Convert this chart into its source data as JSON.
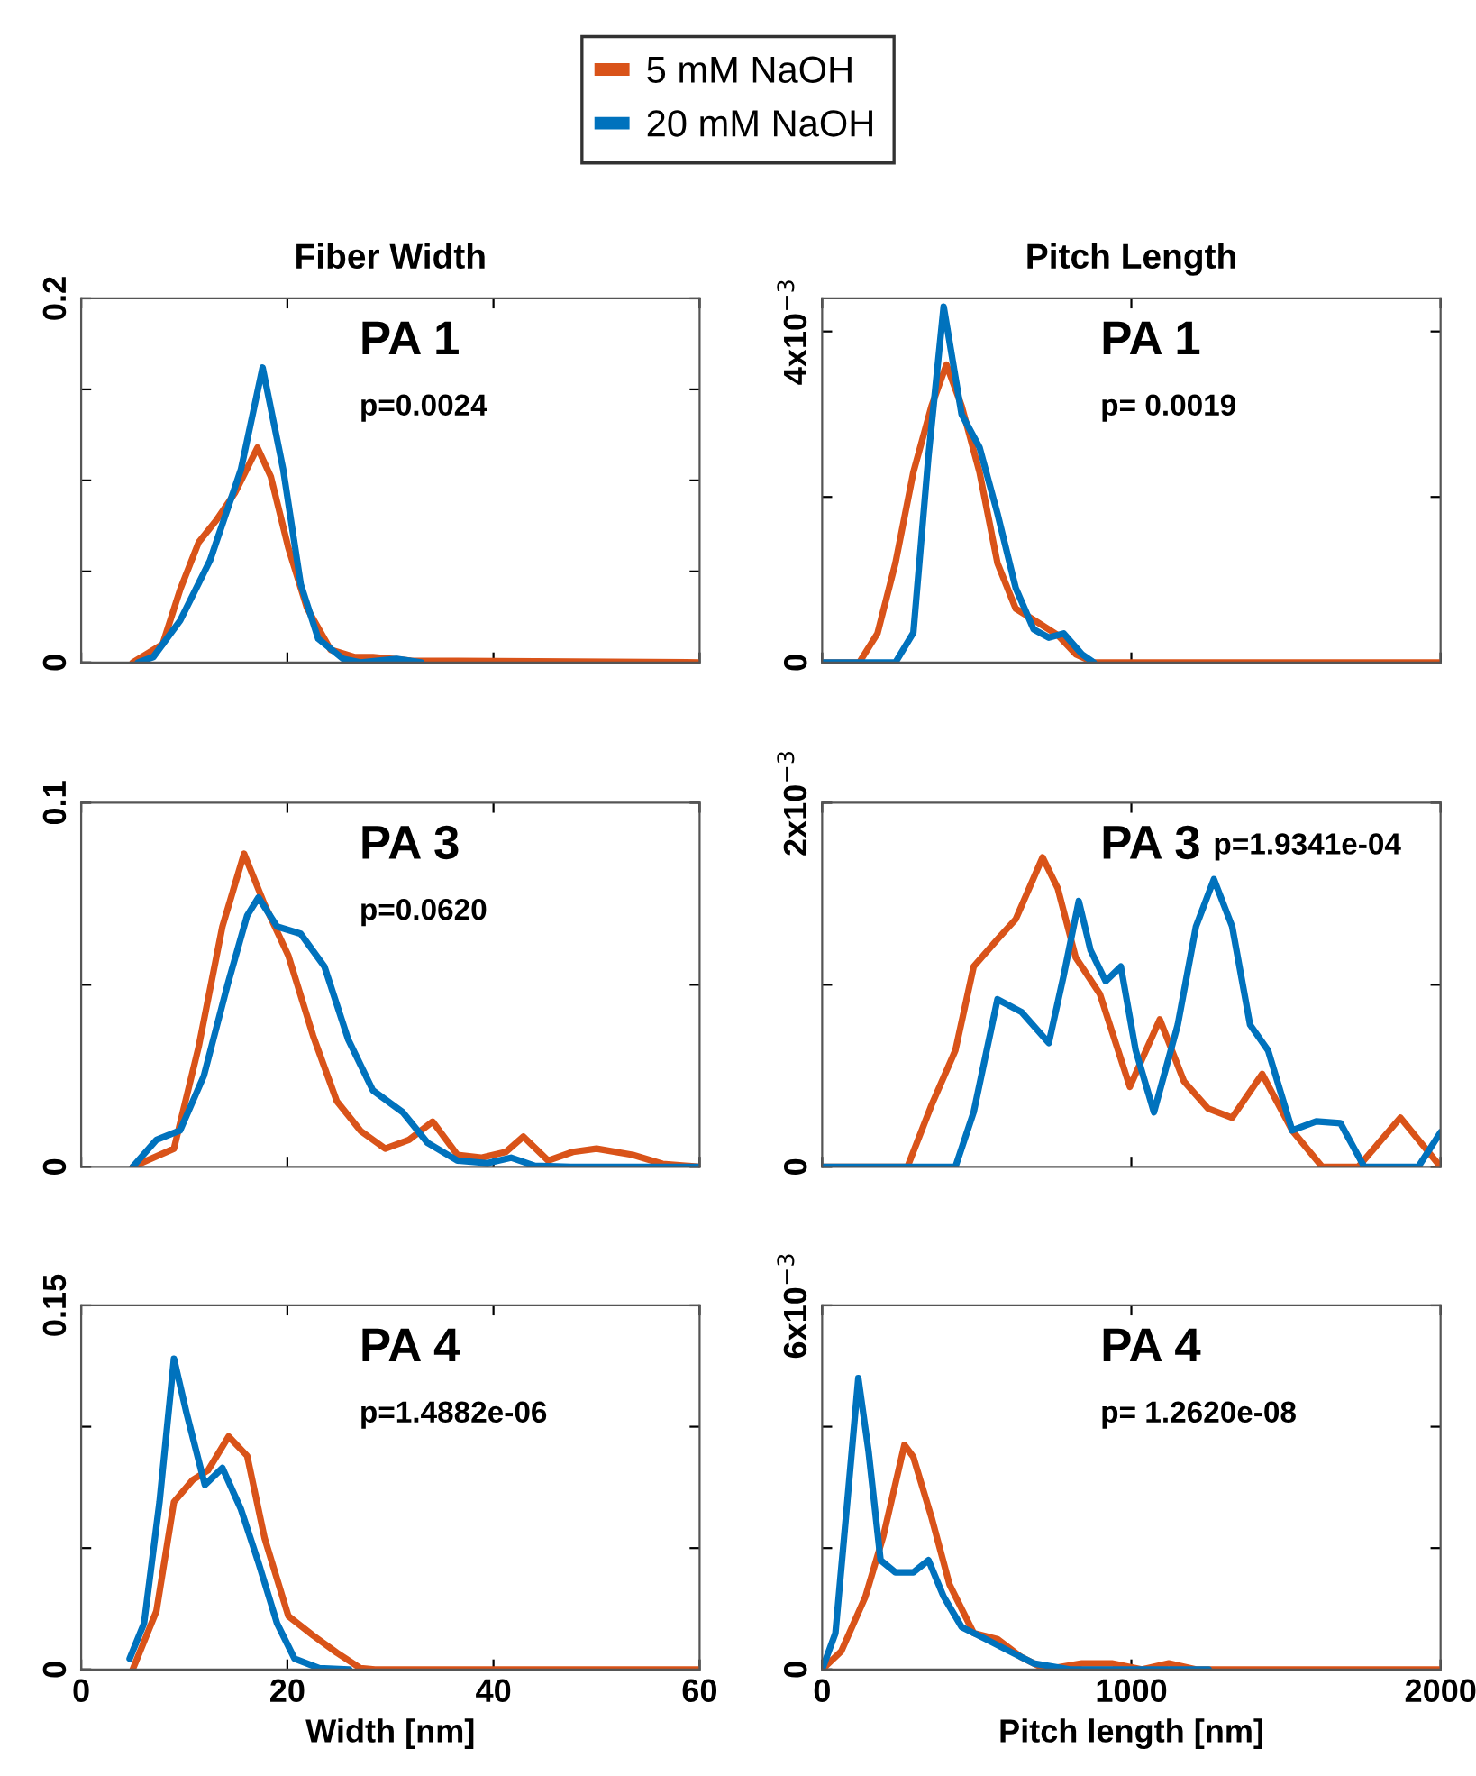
{
  "chart_data": [
    {
      "type": "line",
      "title": "Fiber Width",
      "legend": "top",
      "tick_labels": "y",
      "xlim": [
        0,
        60
      ],
      "xticks": [
        0,
        20,
        40,
        60
      ],
      "ylim": [
        0,
        0.2
      ],
      "yticks": [
        0,
        {
          "value": 0.05,
          "label": null
        },
        {
          "value": 0.1,
          "label": null
        },
        {
          "value": 0.15,
          "label": null
        },
        0.2
      ],
      "annotations": [
        "PA 1",
        "p=0.0024"
      ],
      "series": [
        {
          "name": "5 mM NaOH",
          "color": "#d95319",
          "x": [
            5,
            7.9,
            9.6,
            11.4,
            13.1,
            14.9,
            17.1,
            18.4,
            20.1,
            21.9,
            24.2,
            26.5,
            28.3,
            32,
            60
          ],
          "values": [
            0,
            0.01,
            0.04,
            0.066,
            0.078,
            0.093,
            0.118,
            0.102,
            0.063,
            0.03,
            0.007,
            0.003,
            0.003,
            0.001,
            0
          ]
        },
        {
          "name": "20 mM NaOH",
          "color": "#0072bd",
          "x": [
            5.5,
            7,
            9.6,
            12.5,
            15.5,
            17.6,
            19.6,
            21.3,
            23,
            25.4,
            27.1,
            30.6,
            33
          ],
          "values": [
            0,
            0.003,
            0.023,
            0.056,
            0.106,
            0.162,
            0.106,
            0.043,
            0.013,
            0.002,
            0,
            0.002,
            0
          ]
        }
      ]
    },
    {
      "type": "line",
      "title": "Pitch Length",
      "tick_labels": "y",
      "xlim": [
        0,
        2000
      ],
      "xticks": [
        0,
        1000,
        2000
      ],
      "ylim": [
        0,
        0.0044
      ],
      "yticks": [
        0,
        {
          "value": 0.002,
          "label": null
        },
        {
          "value": 0.004,
          "label": "4x10$^{−3}$"
        }
      ],
      "annotations": [
        "PA 1",
        "p= 0.0019"
      ],
      "series": [
        {
          "color": "#d95319",
          "x": [
            0,
            120,
            179,
            237,
            295,
            354,
            402,
            451,
            509,
            567,
            626,
            703,
            762,
            820,
            878,
            2000
          ],
          "values": [
            0,
            0,
            0.00035,
            0.0012,
            0.0023,
            0.0031,
            0.0036,
            0.0031,
            0.0023,
            0.0012,
            0.00065,
            0.00047,
            0.00033,
            0.0001,
            0,
            0
          ]
        },
        {
          "color": "#0072bd",
          "x": [
            0,
            237,
            295,
            344,
            393,
            451,
            509,
            567,
            626,
            684,
            733,
            781,
            840,
            878
          ],
          "values": [
            0,
            0,
            0.00036,
            0.0025,
            0.0043,
            0.003,
            0.0026,
            0.0018,
            0.0009,
            0.0004,
            0.0003,
            0.00035,
            0.0001,
            0
          ]
        }
      ]
    },
    {
      "type": "line",
      "tick_labels": "y",
      "xlim": [
        0,
        60
      ],
      "xticks": [
        0,
        20,
        40,
        60
      ],
      "ylim": [
        0,
        0.1
      ],
      "yticks": [
        0,
        {
          "value": 0.05,
          "label": null
        },
        0.1
      ],
      "annotations": [
        "PA 3",
        "p=0.0620"
      ],
      "series": [
        {
          "color": "#d95319",
          "x": [
            5,
            9,
            11.4,
            13.7,
            15.8,
            17.8,
            20.1,
            22.5,
            24.8,
            27.1,
            29.5,
            31.8,
            34.1,
            36.5,
            38.8,
            41.2,
            42.9,
            45.3,
            47.7,
            50,
            53.5,
            56.4,
            60
          ],
          "values": [
            0,
            0.005,
            0.033,
            0.066,
            0.086,
            0.072,
            0.058,
            0.036,
            0.018,
            0.0099,
            0.005,
            0.0074,
            0.0124,
            0.0033,
            0.0025,
            0.0041,
            0.0083,
            0.0017,
            0.0041,
            0.005,
            0.0033,
            0.0008,
            0
          ]
        },
        {
          "color": "#0072bd",
          "x": [
            5,
            7.3,
            9.6,
            11.9,
            14.2,
            16.1,
            17.2,
            19,
            21.3,
            23.6,
            25.9,
            28.3,
            31.2,
            33.6,
            36.5,
            39.4,
            41.7,
            44,
            47.5,
            60
          ],
          "values": [
            0,
            0.0074,
            0.01,
            0.025,
            0.05,
            0.069,
            0.074,
            0.066,
            0.064,
            0.055,
            0.035,
            0.021,
            0.015,
            0.0066,
            0.0017,
            0.001,
            0.0025,
            0.0003,
            0,
            0
          ]
        }
      ]
    },
    {
      "type": "line",
      "tick_labels": "y",
      "xlim": [
        0,
        2000
      ],
      "xticks": [
        0,
        1000,
        2000
      ],
      "ylim": [
        0,
        0.002
      ],
      "yticks": [
        0,
        {
          "value": 0.001,
          "label": null
        },
        {
          "value": 0.002,
          "label": "2x10$^{−3}$"
        }
      ],
      "annotations": [
        "PA 3",
        "p=1.9341e-04"
      ],
      "series": [
        {
          "color": "#d95319",
          "x": [
            0,
            276,
            354,
            431,
            490,
            567,
            626,
            713,
            762,
            820,
            898,
            995,
            1092,
            1170,
            1248,
            1326,
            1423,
            1520,
            1617,
            1734,
            1870,
            2000
          ],
          "values": [
            0,
            0,
            0.00034,
            0.00064,
            0.0011,
            0.00125,
            0.00136,
            0.0017,
            0.00153,
            0.00115,
            0.00095,
            0.00044,
            0.00081,
            0.00047,
            0.00032,
            0.00027,
            0.00051,
            0.0002,
            0,
            0,
            0.00027,
            0
          ]
        },
        {
          "color": "#0072bd",
          "x": [
            0,
            431,
            490,
            567,
            645,
            733,
            781,
            830,
            868,
            917,
            966,
            1014,
            1073,
            1150,
            1209,
            1267,
            1326,
            1384,
            1442,
            1520,
            1598,
            1676,
            1753,
            1928,
            2000
          ],
          "values": [
            0,
            0,
            0.0003,
            0.00092,
            0.00085,
            0.00068,
            0.00105,
            0.00146,
            0.00119,
            0.00102,
            0.0011,
            0.00064,
            0.0003,
            0.00078,
            0.00132,
            0.00158,
            0.00132,
            0.00078,
            0.00064,
            0.0002,
            0.00025,
            0.00024,
            0,
            0,
            0.00019
          ]
        }
      ]
    },
    {
      "type": "line",
      "xlabel": "Width [nm]",
      "xlim": [
        0,
        60
      ],
      "xticks": [
        0,
        20,
        40,
        60
      ],
      "ylim": [
        0,
        0.15
      ],
      "yticks": [
        0,
        {
          "value": 0.05,
          "label": null
        },
        {
          "value": 0.1,
          "label": null
        },
        0.15
      ],
      "annotations": [
        "PA 4",
        "p=1.4882e-06"
      ],
      "series": [
        {
          "color": "#d95319",
          "x": [
            5,
            7.3,
            9,
            10.8,
            12.3,
            14.3,
            16.1,
            17.8,
            20.1,
            22.5,
            24.8,
            27.1,
            28.5,
            60
          ],
          "values": [
            0,
            0.024,
            0.069,
            0.078,
            0.082,
            0.096,
            0.088,
            0.054,
            0.022,
            0.014,
            0.0069,
            0.0005,
            0,
            0
          ]
        },
        {
          "color": "#0072bd",
          "x": [
            4.7,
            6.1,
            7.6,
            9,
            10.2,
            12,
            13.7,
            15.5,
            17.2,
            19,
            20.7,
            23.1,
            26
          ],
          "values": [
            0.0044,
            0.019,
            0.069,
            0.128,
            0.106,
            0.076,
            0.083,
            0.066,
            0.044,
            0.019,
            0.0044,
            0.0005,
            0
          ]
        }
      ]
    },
    {
      "type": "line",
      "xlabel": "Pitch length [nm]",
      "xlim": [
        0,
        2000
      ],
      "xticks": [
        0,
        1000,
        2000
      ],
      "ylim": [
        0,
        0.006
      ],
      "yticks": [
        0,
        {
          "value": 0.002,
          "label": null
        },
        {
          "value": 0.004,
          "label": null
        },
        {
          "value": 0.006,
          "label": "6x10$^{−3}$"
        }
      ],
      "annotations": [
        "PA 4",
        "p= 1.2620e-08"
      ],
      "series": [
        {
          "color": "#d95319",
          "x": [
            0,
            62,
            140,
            198,
            266,
            295,
            354,
            412,
            490,
            567,
            645,
            723,
            840,
            937,
            1034,
            1121,
            1209,
            2000
          ],
          "values": [
            0,
            0.0003,
            0.0012,
            0.0022,
            0.0037,
            0.0035,
            0.0025,
            0.0014,
            0.0006,
            0.0005,
            0.0002,
            0,
            0.0001,
            0.0001,
            0,
            0.0001,
            0,
            0
          ]
        },
        {
          "color": "#0072bd",
          "x": [
            0,
            43,
            82,
            117,
            150,
            189,
            237,
            295,
            344,
            393,
            451,
            529,
            606,
            684,
            801,
            1250
          ],
          "values": [
            0,
            0.0006,
            0.0028,
            0.0048,
            0.0036,
            0.0018,
            0.0016,
            0.0016,
            0.0018,
            0.0012,
            0.0007,
            0.0005,
            0.0003,
            0.0001,
            0,
            0
          ]
        }
      ]
    }
  ]
}
